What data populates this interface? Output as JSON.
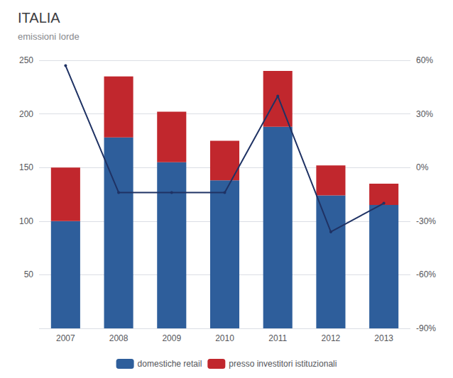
{
  "chart_data": {
    "type": "bar",
    "title": "ITALIA",
    "subtitle": "emissioni lorde",
    "categories": [
      "2007",
      "2008",
      "2009",
      "2010",
      "2011",
      "2012",
      "2013"
    ],
    "stacked": true,
    "series": [
      {
        "name": "domestiche retail",
        "color": "#2E5E9B",
        "values": [
          100,
          178,
          155,
          138,
          188,
          124,
          115
        ]
      },
      {
        "name": "presso investitori istituzionali",
        "color": "#C1272D",
        "values": [
          50,
          57,
          47,
          37,
          52,
          28,
          20
        ]
      },
      {
        "type": "line",
        "axis": "y2",
        "color": "#1F3264",
        "values": [
          57,
          -14,
          -14,
          -14,
          40,
          -36,
          -20
        ]
      }
    ],
    "ylim": [
      0,
      250
    ],
    "yticks": [
      {
        "value": 0,
        "label": null
      },
      50,
      100,
      150,
      200,
      250
    ],
    "y2lim": [
      -90,
      60
    ],
    "y2ticks": [
      {
        "value": -90,
        "label": "-90%"
      },
      {
        "value": -60,
        "label": "-60%"
      },
      {
        "value": -30,
        "label": "-30%"
      },
      {
        "value": 0,
        "label": "0%"
      },
      {
        "value": 30,
        "label": "30%"
      },
      {
        "value": 60,
        "label": "60%"
      }
    ],
    "grid": true,
    "legend": "bottom"
  }
}
